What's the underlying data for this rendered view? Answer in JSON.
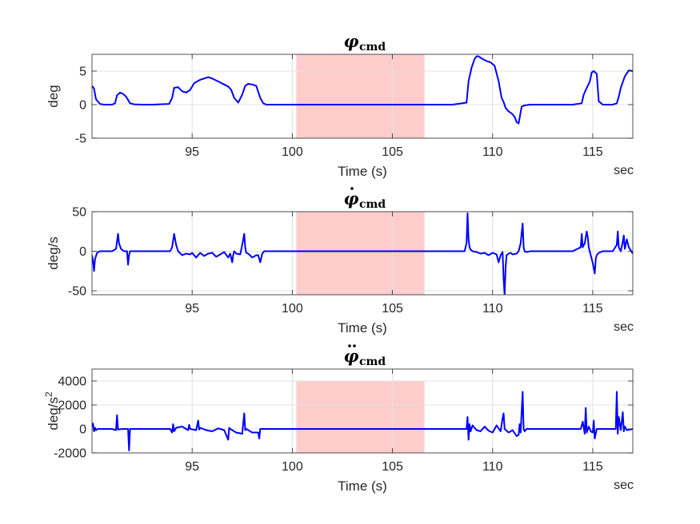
{
  "colors": {
    "line": "#0000ff",
    "highlight": "#ffcccc",
    "grid": "#e0e0e0",
    "axis": "#262626",
    "background": "#ffffff"
  },
  "chart_data": [
    {
      "type": "line",
      "title_symbol": "φ",
      "title_subscript": "cmd",
      "title_dots": 0,
      "xlabel": "Time (s)",
      "x_unit_label": "sec",
      "ylabel": "deg",
      "xlim": [
        90,
        117
      ],
      "ylim": [
        -5,
        7.5
      ],
      "xticks": [
        95,
        100,
        105,
        110,
        115
      ],
      "yticks": [
        -5,
        0,
        5
      ],
      "ytick_labels": [
        "-5",
        "0",
        "5"
      ],
      "grid": true,
      "shaded_region": [
        100.2,
        106.6
      ],
      "series": [
        {
          "x": [
            90,
            90.1,
            90.2,
            90.4,
            90.6,
            91.0,
            91.15,
            91.25,
            91.4,
            91.55,
            91.7,
            91.9,
            92.1,
            92.5,
            93.0,
            93.85,
            94.0,
            94.1,
            94.3,
            94.5,
            94.7,
            94.9,
            95.1,
            95.4,
            95.6,
            95.8,
            96.0,
            96.2,
            96.4,
            96.6,
            96.8,
            96.95,
            97.1,
            97.3,
            97.5,
            97.65,
            97.8,
            98.0,
            98.2,
            98.4,
            98.55,
            98.7,
            98.9,
            99.5,
            100,
            102,
            104,
            106,
            107,
            108,
            108.7,
            108.8,
            108.95,
            109.1,
            109.2,
            109.3,
            109.5,
            109.7,
            109.9,
            110.1,
            110.3,
            110.45,
            110.55,
            110.65,
            110.8,
            110.95,
            111.1,
            111.2,
            111.3,
            111.45,
            111.6,
            111.9,
            112.5,
            113,
            114,
            114.45,
            114.55,
            114.7,
            114.85,
            114.95,
            115.05,
            115.2,
            115.3,
            115.5,
            116,
            116.2,
            116.3,
            116.4,
            116.6,
            116.8,
            117
          ],
          "y": [
            2.8,
            2.4,
            0.8,
            0.1,
            0.0,
            0.0,
            0.2,
            1.4,
            1.8,
            1.6,
            1.2,
            0.2,
            0.05,
            0.0,
            0.0,
            0.1,
            1.0,
            2.5,
            2.6,
            2.0,
            1.8,
            2.2,
            3.2,
            3.7,
            3.9,
            4.1,
            3.9,
            3.6,
            3.3,
            3.0,
            2.7,
            2.2,
            1.0,
            0.3,
            1.5,
            2.8,
            3.1,
            3.0,
            2.8,
            1.0,
            0.2,
            0.0,
            0.0,
            0.0,
            0.0,
            0.0,
            0.0,
            0.0,
            0.0,
            0.0,
            0.3,
            3.5,
            5.5,
            6.8,
            7.2,
            7.2,
            6.8,
            6.5,
            6.3,
            5.8,
            3.5,
            1.0,
            0.4,
            -0.5,
            -1.0,
            -1.3,
            -1.8,
            -2.6,
            -2.8,
            -0.3,
            -0.1,
            0.0,
            0.0,
            0.0,
            0.0,
            0.2,
            1.5,
            2.5,
            3.4,
            4.8,
            5.0,
            4.6,
            0.5,
            0.0,
            0.0,
            0.2,
            1.2,
            2.5,
            4.2,
            5.1,
            5.0
          ]
        }
      ]
    },
    {
      "type": "line",
      "title_symbol": "φ",
      "title_subscript": "cmd",
      "title_dots": 1,
      "xlabel": "Time (s)",
      "x_unit_label": "sec",
      "ylabel": "deg/s",
      "xlim": [
        90,
        117
      ],
      "ylim": [
        -55,
        50
      ],
      "xticks": [
        95,
        100,
        105,
        110,
        115
      ],
      "yticks": [
        -50,
        0,
        50
      ],
      "ytick_labels": [
        "-50",
        "0",
        "50"
      ],
      "grid": true,
      "shaded_region": [
        100.2,
        106.6
      ],
      "series": [
        {
          "x": [
            90,
            90.05,
            90.1,
            90.15,
            90.25,
            90.4,
            91.0,
            91.2,
            91.3,
            91.35,
            91.45,
            91.6,
            91.75,
            91.8,
            91.85,
            91.9,
            92.0,
            93.9,
            94.0,
            94.1,
            94.2,
            94.3,
            94.5,
            94.7,
            94.9,
            95.0,
            95.2,
            95.4,
            95.6,
            95.8,
            96.0,
            96.2,
            96.4,
            96.6,
            96.8,
            96.9,
            97.0,
            97.05,
            97.1,
            97.2,
            97.4,
            97.5,
            97.6,
            97.65,
            97.7,
            97.8,
            98.0,
            98.2,
            98.3,
            98.4,
            98.5,
            98.6,
            99,
            105,
            108.6,
            108.7,
            108.75,
            108.8,
            108.85,
            108.9,
            109.0,
            109.2,
            109.4,
            109.6,
            109.8,
            110.0,
            110.2,
            110.3,
            110.4,
            110.5,
            110.55,
            110.6,
            110.65,
            110.7,
            110.8,
            110.9,
            111.0,
            111.2,
            111.3,
            111.4,
            111.5,
            111.55,
            111.6,
            111.7,
            111.9,
            112.5,
            113,
            114.0,
            114.4,
            114.45,
            114.5,
            114.6,
            114.7,
            114.75,
            114.8,
            114.9,
            115.0,
            115.1,
            115.15,
            115.2,
            115.3,
            115.5,
            116,
            116.2,
            116.25,
            116.3,
            116.4,
            116.5,
            116.55,
            116.6,
            116.7,
            116.8,
            117
          ],
          "y": [
            -5,
            -12,
            -25,
            -10,
            -2,
            0,
            0,
            3,
            22,
            10,
            3,
            0,
            0,
            -17,
            -5,
            0,
            0,
            0,
            5,
            22,
            8,
            0,
            -5,
            -3,
            -4,
            -2,
            -8,
            -2,
            -6,
            -3,
            -2,
            -7,
            -4,
            -1,
            -8,
            -3,
            -14,
            -5,
            0,
            -3,
            -4,
            8,
            22,
            5,
            -2,
            -3,
            -8,
            -5,
            -5,
            -14,
            -3,
            0,
            0,
            0,
            0,
            10,
            48,
            15,
            5,
            2,
            0,
            -1,
            -3,
            -2,
            -5,
            -2,
            -4,
            -14,
            -5,
            -1,
            -35,
            -55,
            -20,
            -5,
            -3,
            -2,
            -4,
            -3,
            0,
            10,
            35,
            5,
            0,
            -1,
            0,
            0,
            0,
            0,
            5,
            22,
            5,
            10,
            25,
            18,
            5,
            -5,
            -15,
            -28,
            -10,
            -5,
            -2,
            0,
            0,
            8,
            25,
            5,
            0,
            12,
            20,
            3,
            15,
            5,
            -3
          ]
        }
      ]
    },
    {
      "type": "line",
      "title_symbol": "φ",
      "title_subscript": "cmd",
      "title_dots": 2,
      "xlabel": "Time (s)",
      "x_unit_label": "sec",
      "ylabel": "deg/s",
      "ylabel_superscript": "2",
      "xlim": [
        90,
        117
      ],
      "ylim": [
        -2000,
        5000
      ],
      "xticks": [
        95,
        100,
        105,
        110,
        115
      ],
      "yticks": [
        -2000,
        0,
        2000,
        4000
      ],
      "ytick_labels": [
        "-2000",
        "0",
        "2000",
        "4000"
      ],
      "grid": true,
      "shaded_region": [
        100.2,
        106.6
      ],
      "shaded_ylim": [
        -2000,
        4000
      ],
      "series": [
        {
          "x": [
            90,
            90.05,
            90.1,
            90.15,
            90.2,
            90.3,
            91.0,
            91.2,
            91.25,
            91.3,
            91.5,
            91.8,
            91.85,
            91.9,
            92.0,
            93.9,
            94.0,
            94.05,
            94.1,
            94.2,
            94.5,
            94.8,
            94.85,
            94.9,
            95.2,
            95.3,
            95.35,
            95.4,
            95.7,
            96.0,
            96.3,
            96.6,
            96.8,
            96.85,
            96.9,
            97.2,
            97.5,
            97.6,
            97.65,
            97.7,
            98.0,
            98.3,
            98.35,
            98.4,
            98.6,
            99,
            105,
            108.6,
            108.7,
            108.75,
            108.8,
            108.85,
            108.9,
            109.0,
            109.2,
            109.4,
            109.6,
            109.8,
            110.0,
            110.2,
            110.4,
            110.5,
            110.55,
            110.6,
            110.8,
            111.0,
            111.2,
            111.3,
            111.35,
            111.4,
            111.5,
            111.55,
            111.6,
            111.7,
            112,
            113,
            114.4,
            114.5,
            114.6,
            114.65,
            114.7,
            114.8,
            114.9,
            115.0,
            115.05,
            115.1,
            115.2,
            115.3,
            116,
            116.15,
            116.2,
            116.25,
            116.3,
            116.4,
            116.5,
            116.55,
            116.6,
            116.7,
            117
          ],
          "y": [
            200,
            450,
            -200,
            100,
            -100,
            0,
            0,
            -100,
            1150,
            -50,
            0,
            0,
            -1800,
            0,
            0,
            0,
            -300,
            400,
            -200,
            100,
            200,
            -100,
            350,
            0,
            -100,
            700,
            -50,
            100,
            -100,
            -200,
            50,
            -100,
            -900,
            100,
            0,
            -300,
            -400,
            1300,
            -100,
            0,
            -300,
            -300,
            -800,
            0,
            0,
            0,
            0,
            0,
            0,
            1000,
            -900,
            400,
            -200,
            300,
            -100,
            -200,
            200,
            -150,
            -300,
            300,
            -200,
            900,
            1300,
            0,
            -300,
            -100,
            -600,
            -500,
            400,
            -300,
            3100,
            0,
            -200,
            0,
            0,
            0,
            0,
            600,
            -400,
            1750,
            -300,
            200,
            -200,
            -300,
            700,
            -800,
            0,
            0,
            0,
            0,
            3100,
            -400,
            1000,
            -100,
            1400,
            -200,
            200,
            -100,
            0
          ]
        }
      ]
    }
  ]
}
